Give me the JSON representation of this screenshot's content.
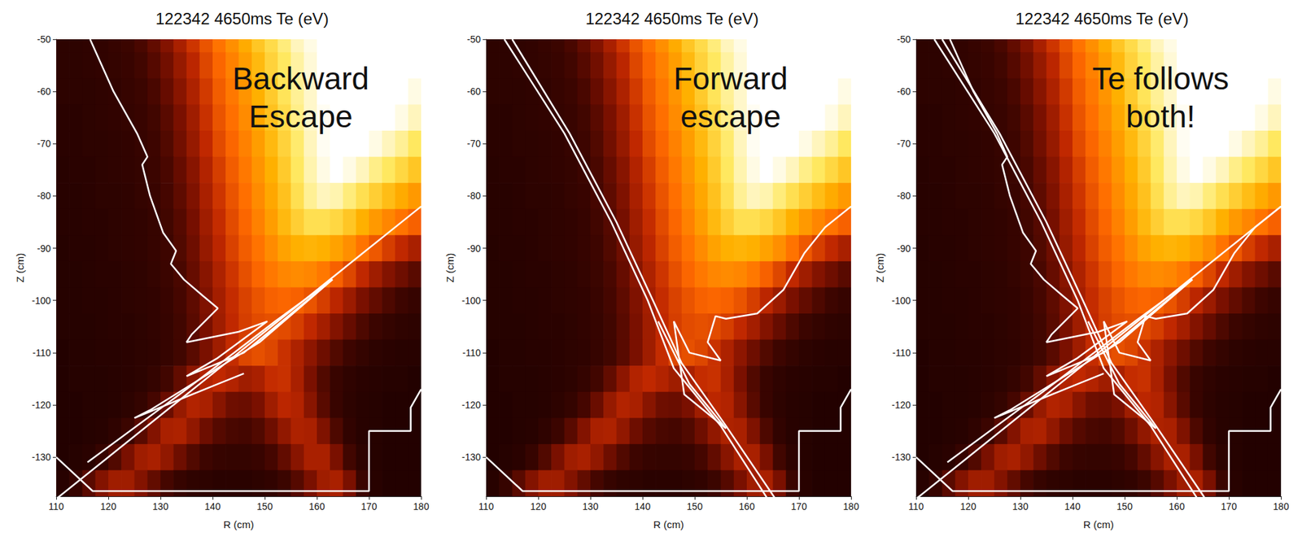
{
  "chart_data": {
    "type": "heatmap",
    "xlabel": "R (cm)",
    "ylabel": "Z (cm)",
    "xlim": [
      110,
      180
    ],
    "ylim": [
      -137.5,
      -50
    ],
    "xticks": [
      110,
      120,
      130,
      140,
      150,
      160,
      170,
      180
    ],
    "yticks": [
      -50,
      -60,
      -70,
      -80,
      -90,
      -100,
      -110,
      -120,
      -130
    ],
    "zlim": [
      0,
      100
    ],
    "x": [
      111.25,
      113.75,
      116.25,
      118.75,
      121.25,
      123.75,
      126.25,
      128.75,
      131.25,
      133.75,
      136.25,
      138.75,
      141.25,
      143.75,
      146.25,
      148.75,
      151.25,
      153.75,
      156.25,
      158.75,
      161.25,
      163.75,
      166.25,
      168.75,
      171.25,
      173.75,
      176.25,
      178.75
    ],
    "y": [
      -50,
      -55,
      -60,
      -65,
      -70,
      -75,
      -80,
      -85,
      -90,
      -95,
      -100,
      -105,
      -110,
      -115,
      -120,
      -125,
      -130,
      -135
    ],
    "cells": [
      [
        8,
        8,
        9,
        10,
        12,
        14,
        18,
        24,
        32,
        40,
        48,
        55,
        62,
        68,
        74,
        80,
        85,
        90,
        95,
        98,
        100,
        100,
        100,
        100,
        100,
        100,
        100,
        100
      ],
      [
        8,
        8,
        9,
        10,
        11,
        13,
        16,
        21,
        28,
        36,
        44,
        52,
        59,
        65,
        71,
        77,
        83,
        88,
        93,
        97,
        100,
        100,
        100,
        100,
        100,
        100,
        100,
        100
      ],
      [
        8,
        8,
        8,
        9,
        10,
        12,
        14,
        18,
        25,
        33,
        41,
        49,
        57,
        63,
        69,
        75,
        81,
        87,
        92,
        96,
        100,
        100,
        100,
        100,
        100,
        100,
        100,
        98
      ],
      [
        7,
        7,
        8,
        9,
        10,
        11,
        13,
        16,
        22,
        30,
        38,
        47,
        55,
        61,
        67,
        73,
        79,
        85,
        91,
        96,
        99,
        100,
        100,
        100,
        100,
        100,
        98,
        95
      ],
      [
        7,
        7,
        8,
        8,
        9,
        10,
        12,
        15,
        20,
        28,
        36,
        45,
        53,
        59,
        65,
        71,
        77,
        83,
        89,
        95,
        99,
        100,
        100,
        100,
        98,
        95,
        92,
        88
      ],
      [
        6,
        7,
        7,
        8,
        9,
        10,
        11,
        14,
        18,
        25,
        33,
        42,
        50,
        57,
        63,
        69,
        75,
        81,
        88,
        94,
        98,
        100,
        98,
        95,
        91,
        88,
        84,
        80
      ],
      [
        6,
        6,
        7,
        8,
        8,
        9,
        11,
        13,
        17,
        23,
        31,
        40,
        48,
        55,
        61,
        67,
        73,
        79,
        86,
        92,
        95,
        94,
        90,
        86,
        82,
        78,
        74,
        70
      ],
      [
        6,
        6,
        7,
        7,
        8,
        9,
        10,
        12,
        16,
        21,
        29,
        38,
        46,
        53,
        59,
        65,
        71,
        77,
        82,
        86,
        86,
        84,
        80,
        75,
        70,
        66,
        62,
        58
      ],
      [
        5,
        6,
        6,
        7,
        8,
        9,
        10,
        12,
        15,
        20,
        27,
        36,
        44,
        51,
        57,
        62,
        67,
        72,
        75,
        76,
        75,
        72,
        68,
        62,
        56,
        50,
        45,
        40
      ],
      [
        5,
        5,
        6,
        7,
        7,
        8,
        9,
        11,
        14,
        18,
        25,
        33,
        41,
        48,
        54,
        59,
        63,
        66,
        67,
        66,
        63,
        58,
        52,
        45,
        38,
        32,
        27,
        22
      ],
      [
        5,
        5,
        6,
        6,
        7,
        8,
        9,
        10,
        13,
        17,
        23,
        31,
        39,
        46,
        51,
        55,
        58,
        59,
        58,
        55,
        50,
        44,
        37,
        30,
        24,
        19,
        15,
        12
      ],
      [
        5,
        5,
        5,
        6,
        7,
        7,
        8,
        10,
        12,
        16,
        22,
        30,
        38,
        45,
        50,
        53,
        54,
        53,
        50,
        45,
        39,
        32,
        25,
        19,
        14,
        11,
        9,
        8
      ],
      [
        4,
        5,
        5,
        6,
        6,
        7,
        8,
        9,
        12,
        16,
        22,
        30,
        38,
        46,
        52,
        54,
        52,
        47,
        41,
        34,
        27,
        20,
        15,
        11,
        8,
        7,
        6,
        6
      ],
      [
        4,
        5,
        5,
        5,
        6,
        7,
        8,
        11,
        16,
        24,
        34,
        42,
        45,
        42,
        38,
        40,
        46,
        47,
        40,
        30,
        20,
        13,
        9,
        7,
        6,
        5,
        5,
        4
      ],
      [
        4,
        4,
        5,
        5,
        6,
        8,
        11,
        17,
        26,
        36,
        42,
        40,
        33,
        27,
        26,
        30,
        38,
        44,
        42,
        33,
        22,
        13,
        8,
        6,
        5,
        4,
        4,
        4
      ],
      [
        4,
        4,
        5,
        6,
        9,
        14,
        22,
        32,
        40,
        41,
        35,
        27,
        21,
        18,
        17,
        20,
        27,
        35,
        41,
        40,
        31,
        19,
        10,
        6,
        5,
        4,
        4,
        4
      ],
      [
        4,
        5,
        7,
        12,
        20,
        30,
        38,
        40,
        35,
        27,
        20,
        15,
        12,
        11,
        11,
        13,
        17,
        24,
        33,
        40,
        40,
        30,
        16,
        8,
        5,
        4,
        4,
        4
      ],
      [
        6,
        12,
        22,
        32,
        38,
        38,
        32,
        24,
        17,
        12,
        9,
        8,
        7,
        7,
        7,
        8,
        10,
        14,
        21,
        30,
        38,
        40,
        30,
        14,
        6,
        4,
        4,
        4
      ]
    ],
    "color": "#ffffff",
    "wall": [
      [
        110,
        -130
      ],
      [
        117,
        -136.5
      ],
      [
        170,
        -136.5
      ],
      [
        170,
        -125
      ],
      [
        178,
        -125
      ],
      [
        178,
        -120.5
      ],
      [
        180,
        -117
      ]
    ],
    "panels": [
      {
        "title": "122342 4650ms Te (eV)",
        "annotation": "Backward\nEscape",
        "traces": [
          [
            [
              116.5,
              -50
            ],
            [
              121,
              -60
            ],
            [
              125.5,
              -68
            ],
            [
              127.5,
              -72.5
            ],
            [
              126.5,
              -74
            ],
            [
              128,
              -80
            ],
            [
              130.5,
              -87
            ],
            [
              133,
              -90.5
            ],
            [
              132,
              -93
            ],
            [
              134.5,
              -96
            ],
            [
              138,
              -99
            ],
            [
              141,
              -101.5
            ],
            [
              136,
              -106.5
            ],
            [
              135,
              -108
            ],
            [
              145,
              -106
            ],
            [
              150.5,
              -104
            ],
            [
              141,
              -111
            ],
            [
              135,
              -114.5
            ],
            [
              146,
              -110
            ],
            [
              163,
              -96
            ],
            [
              149,
              -108
            ],
            [
              128,
              -121
            ],
            [
              125,
              -122.5
            ],
            [
              141,
              -116
            ],
            [
              146,
              -114
            ]
          ],
          [
            [
              110,
              -138
            ],
            [
              145,
              -110
            ],
            [
              180,
              -82
            ]
          ],
          [
            [
              116,
              -131
            ],
            [
              135,
              -117
            ],
            [
              152,
              -104
            ],
            [
              163,
              -96
            ]
          ]
        ]
      },
      {
        "title": "122342 4650ms Te (eV)",
        "annotation": "Forward\nescape",
        "traces": [
          [
            [
              113.5,
              -50
            ],
            [
              125,
              -68
            ],
            [
              134,
              -85
            ],
            [
              141,
              -100
            ],
            [
              146,
              -113
            ],
            [
              155,
              -124
            ],
            [
              164,
              -138
            ]
          ],
          [
            [
              115,
              -50
            ],
            [
              126,
              -68
            ],
            [
              135,
              -85
            ],
            [
              142,
              -100
            ],
            [
              147.5,
              -112
            ],
            [
              156,
              -124
            ],
            [
              165.5,
              -138
            ]
          ],
          [
            [
              180,
              -82
            ],
            [
              175,
              -86
            ],
            [
              171,
              -91
            ],
            [
              167,
              -98
            ],
            [
              162,
              -102.5
            ],
            [
              156,
              -103.5
            ],
            [
              154,
              -103
            ],
            [
              152.5,
              -108
            ],
            [
              155,
              -111.5
            ],
            [
              149,
              -110
            ],
            [
              146,
              -104
            ],
            [
              148,
              -118
            ],
            [
              156,
              -124.5
            ],
            [
              149,
              -116
            ],
            [
              143,
              -104
            ]
          ]
        ]
      },
      {
        "title": "122342 4650ms Te (eV)",
        "annotation": "Te follows\nboth!",
        "traces": [
          [
            [
              116.5,
              -50
            ],
            [
              121,
              -60
            ],
            [
              125.5,
              -68
            ],
            [
              127.5,
              -72.5
            ],
            [
              126.5,
              -74
            ],
            [
              128,
              -80
            ],
            [
              130.5,
              -87
            ],
            [
              133,
              -90.5
            ],
            [
              132,
              -93
            ],
            [
              134.5,
              -96
            ],
            [
              138,
              -99
            ],
            [
              141,
              -101.5
            ],
            [
              136,
              -106.5
            ],
            [
              135,
              -108
            ],
            [
              145,
              -106
            ],
            [
              150.5,
              -104
            ],
            [
              141,
              -111
            ],
            [
              135,
              -114.5
            ],
            [
              146,
              -110
            ],
            [
              163,
              -96
            ],
            [
              149,
              -108
            ],
            [
              128,
              -121
            ],
            [
              125,
              -122.5
            ],
            [
              141,
              -116
            ],
            [
              146,
              -114
            ]
          ],
          [
            [
              110,
              -138
            ],
            [
              145,
              -110
            ],
            [
              180,
              -82
            ]
          ],
          [
            [
              116,
              -131
            ],
            [
              135,
              -117
            ],
            [
              152,
              -104
            ],
            [
              163,
              -96
            ]
          ],
          [
            [
              113.5,
              -50
            ],
            [
              125,
              -68
            ],
            [
              134,
              -85
            ],
            [
              141,
              -100
            ],
            [
              146,
              -113
            ],
            [
              155,
              -124
            ],
            [
              164,
              -138
            ]
          ],
          [
            [
              115,
              -50
            ],
            [
              126,
              -68
            ],
            [
              135,
              -85
            ],
            [
              142,
              -100
            ],
            [
              147.5,
              -112
            ],
            [
              156,
              -124
            ],
            [
              165.5,
              -138
            ]
          ],
          [
            [
              180,
              -82
            ],
            [
              175,
              -86
            ],
            [
              171,
              -91
            ],
            [
              167,
              -98
            ],
            [
              162,
              -102.5
            ],
            [
              156,
              -103.5
            ],
            [
              154,
              -103
            ],
            [
              152.5,
              -108
            ],
            [
              155,
              -111.5
            ],
            [
              149,
              -110
            ],
            [
              146,
              -104
            ],
            [
              148,
              -118
            ],
            [
              156,
              -124.5
            ],
            [
              149,
              -116
            ],
            [
              143,
              -104
            ]
          ]
        ]
      }
    ]
  }
}
